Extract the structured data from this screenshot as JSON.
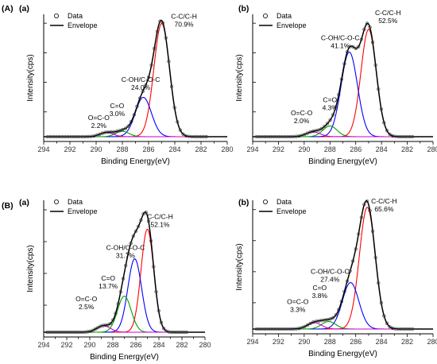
{
  "figure": {
    "group_labels": [
      "(A)",
      "(B)"
    ]
  },
  "chart_data": [
    {
      "type": "line",
      "panel_label": "(a)",
      "xlabel": "Binding Energy(eV)",
      "ylabel": "Intensity(cps)",
      "xlim": [
        294,
        280
      ],
      "x_ticks": [
        294,
        292,
        290,
        288,
        286,
        284,
        282,
        280
      ],
      "legend": [
        "Data",
        "Envelope"
      ],
      "legend_position": "top-left",
      "series": [
        {
          "name": "C-C/C-H",
          "center": 285.0,
          "height": 0.95,
          "fwhm": 1.4,
          "color": "#ff0000"
        },
        {
          "name": "C-OH/C-O-C",
          "center": 286.4,
          "height": 0.33,
          "fwhm": 1.45,
          "color": "#0000ff"
        },
        {
          "name": "C=O",
          "center": 288.0,
          "height": 0.045,
          "fwhm": 1.2,
          "color": "#00a000"
        },
        {
          "name": "O=C-O",
          "center": 289.2,
          "height": 0.035,
          "fwhm": 1.2,
          "color": "#cc00cc"
        }
      ],
      "annotations": [
        {
          "text": "C-C/C-H",
          "percent": "70.9%"
        },
        {
          "text": "C-OH/C-O-C",
          "percent": "24.0%"
        },
        {
          "text": "C=O",
          "percent": "3.0%"
        },
        {
          "text": "O=C-O",
          "percent": "2.2%"
        }
      ]
    },
    {
      "type": "line",
      "panel_label": "(b)",
      "xlabel": "Binding Energy(eV)",
      "ylabel": "Intensity(cps)",
      "xlim": [
        294,
        280
      ],
      "x_ticks": [
        294,
        292,
        290,
        288,
        286,
        284,
        282,
        280
      ],
      "legend": [
        "Data",
        "Envelope"
      ],
      "legend_position": "top-left",
      "series": [
        {
          "name": "C-C/C-H",
          "center": 285.0,
          "height": 0.9,
          "fwhm": 1.4,
          "color": "#ff0000"
        },
        {
          "name": "C-OH/C-O-C",
          "center": 286.5,
          "height": 0.71,
          "fwhm": 1.5,
          "color": "#0000ff"
        },
        {
          "name": "C=O",
          "center": 288.0,
          "height": 0.09,
          "fwhm": 1.3,
          "color": "#00a000"
        },
        {
          "name": "O=C-O",
          "center": 289.3,
          "height": 0.04,
          "fwhm": 1.3,
          "color": "#cc00cc"
        }
      ],
      "annotations": [
        {
          "text": "C-C/C-H",
          "percent": "52.5%"
        },
        {
          "text": "C-OH/C-O-C",
          "percent": "41.1%"
        },
        {
          "text": "C=O",
          "percent": "4.3%"
        },
        {
          "text": "O=C-O",
          "percent": "2.0%"
        }
      ]
    },
    {
      "type": "line",
      "panel_label": "(a)",
      "xlabel": "Binding Energy(eV)",
      "ylabel": "Intensity(cps)",
      "xlim": [
        294,
        280
      ],
      "x_ticks": [
        294,
        292,
        290,
        288,
        286,
        284,
        282,
        280
      ],
      "legend": [
        "Data",
        "Envelope"
      ],
      "legend_position": "top-left",
      "series": [
        {
          "name": "C-C/C-H",
          "center": 285.0,
          "height": 0.8,
          "fwhm": 1.3,
          "color": "#ff0000"
        },
        {
          "name": "C-OH/C-O-C",
          "center": 286.1,
          "height": 0.57,
          "fwhm": 1.4,
          "color": "#0000ff"
        },
        {
          "name": "C=O",
          "center": 287.0,
          "height": 0.28,
          "fwhm": 1.4,
          "color": "#00a000"
        },
        {
          "name": "O=C-O",
          "center": 288.8,
          "height": 0.05,
          "fwhm": 1.4,
          "color": "#cc00cc"
        }
      ],
      "annotations": [
        {
          "text": "C-C/C-H",
          "percent": "52.1%"
        },
        {
          "text": "C-OH/C-O-C",
          "percent": "31.7%"
        },
        {
          "text": "C=O",
          "percent": "13.7%"
        },
        {
          "text": "O=C-O",
          "percent": "2.5%"
        }
      ]
    },
    {
      "type": "line",
      "panel_label": "(b)",
      "xlabel": "Binding Energy(eV)",
      "ylabel": "Intensity(cps)",
      "xlim": [
        294,
        280
      ],
      "x_ticks": [
        294,
        292,
        290,
        288,
        286,
        284,
        282,
        280
      ],
      "legend": [
        "Data",
        "Envelope"
      ],
      "legend_position": "top-left",
      "series": [
        {
          "name": "C-C/C-H",
          "center": 285.1,
          "height": 0.97,
          "fwhm": 1.45,
          "color": "#ff0000"
        },
        {
          "name": "C-OH/C-O-C",
          "center": 286.4,
          "height": 0.37,
          "fwhm": 1.5,
          "color": "#0000ff"
        },
        {
          "name": "C=O",
          "center": 288.1,
          "height": 0.06,
          "fwhm": 1.3,
          "color": "#00a000"
        },
        {
          "name": "O=C-O",
          "center": 289.2,
          "height": 0.05,
          "fwhm": 1.3,
          "color": "#cc00cc"
        }
      ],
      "annotations": [
        {
          "text": "C-C/C-H",
          "percent": "65.6%"
        },
        {
          "text": "C-OH/C-O-C",
          "percent": "27.4%"
        },
        {
          "text": "C=O",
          "percent": "3.8%"
        },
        {
          "text": "O=C-O",
          "percent": "3.3%"
        }
      ]
    }
  ]
}
